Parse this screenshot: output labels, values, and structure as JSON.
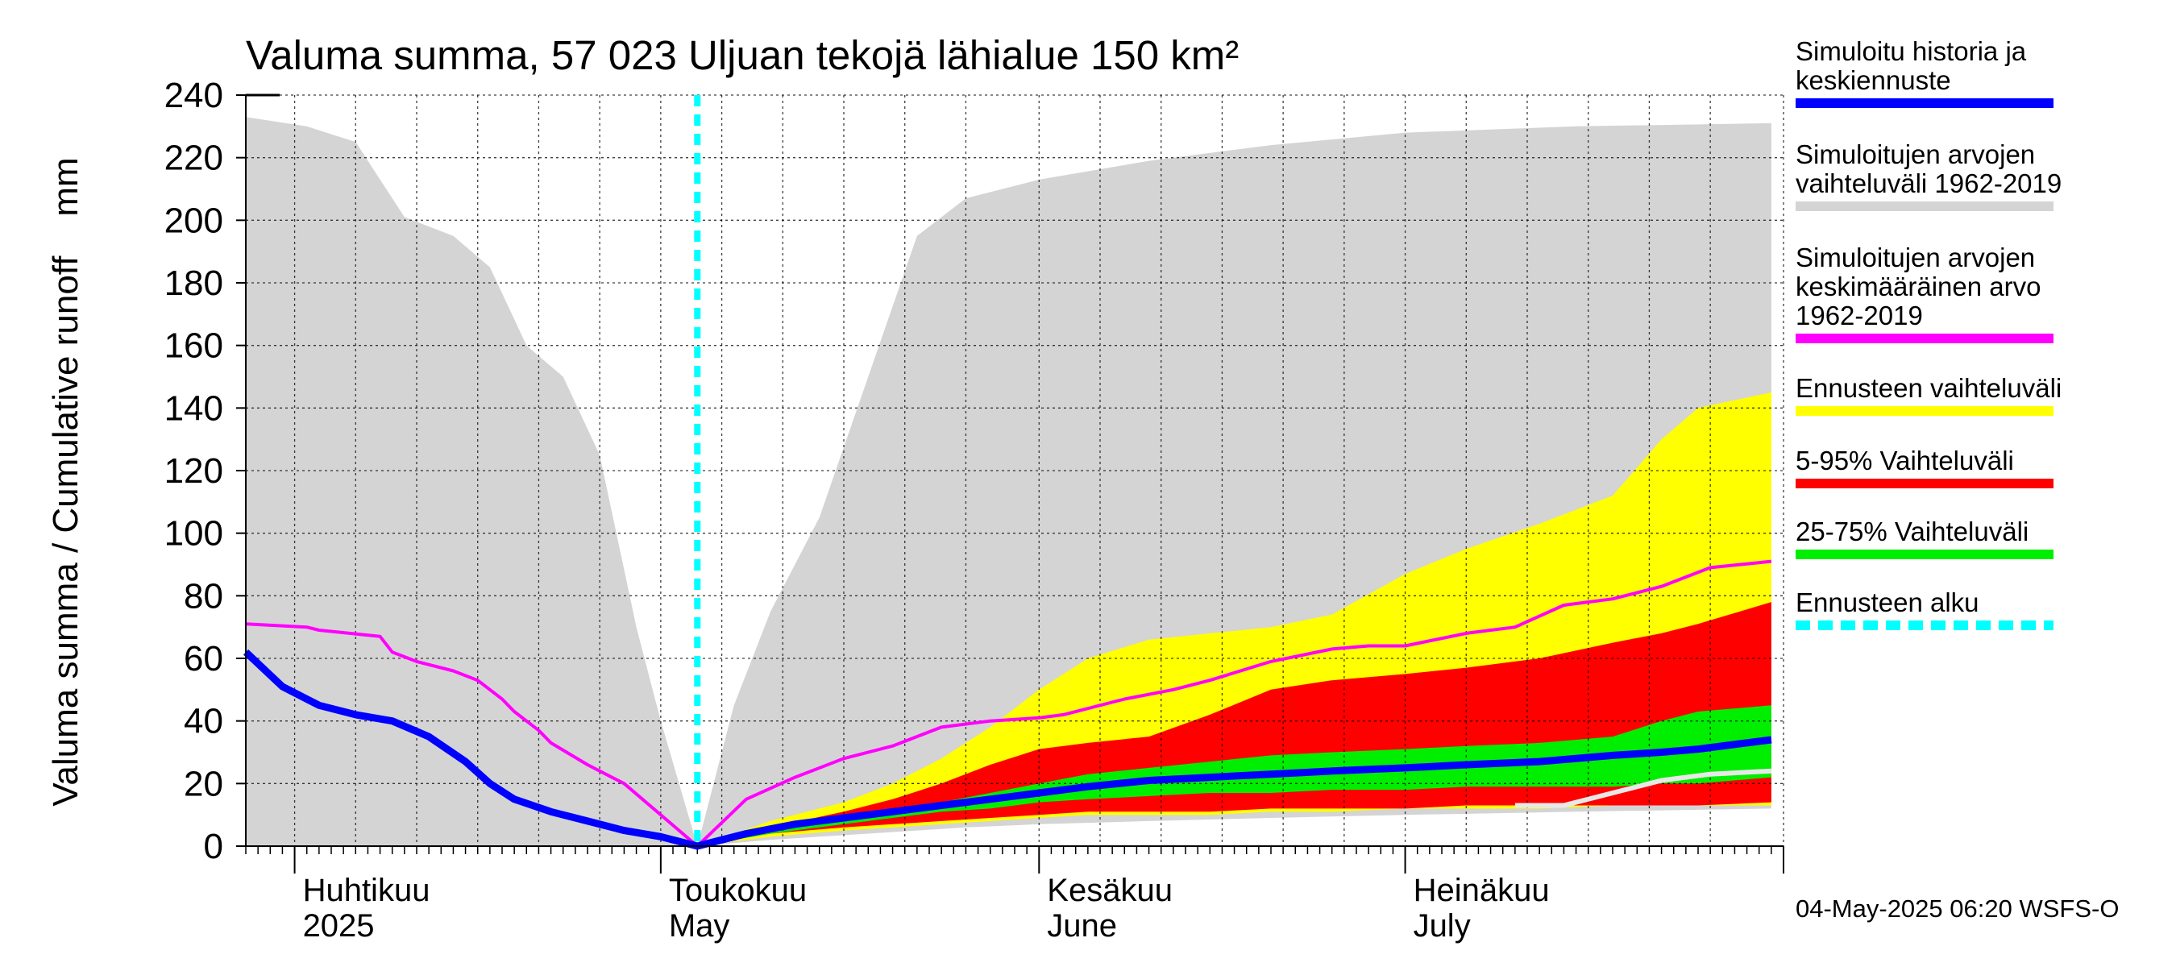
{
  "chart_data": {
    "type": "area",
    "title": "Valuma summa, 57 023 Uljuan tekojä lähialue 150 km²",
    "ylabel": "Valuma summa / Cumulative runoff    mm",
    "ylim": [
      0,
      240
    ],
    "yticks": [
      0,
      20,
      40,
      60,
      80,
      100,
      120,
      140,
      160,
      180,
      200,
      220,
      240
    ],
    "x_range": [
      "2025-03-28",
      "2025-07-31"
    ],
    "grid": true,
    "month_labels": [
      {
        "date": "2025-04-01",
        "fi": "Huhtikuu",
        "en": "2025"
      },
      {
        "date": "2025-05-01",
        "fi": "Toukokuu",
        "en": "May"
      },
      {
        "date": "2025-06-01",
        "fi": "Kesäkuu",
        "en": "June"
      },
      {
        "date": "2025-07-01",
        "fi": "Heinäkuu",
        "en": "July"
      }
    ],
    "forecast_start": "2025-05-04",
    "legend_position": "right",
    "bands": [
      {
        "name": "Simuloitujen arvojen vaihteluväli 1962-2019",
        "color": "#d4d4d4",
        "x": [
          "2025-03-28",
          "2025-04-02",
          "2025-04-06",
          "2025-04-10",
          "2025-04-14",
          "2025-04-17",
          "2025-04-20",
          "2025-04-23",
          "2025-04-26",
          "2025-04-29",
          "2025-05-01",
          "2025-05-04",
          "2025-05-07",
          "2025-05-10",
          "2025-05-14",
          "2025-05-18",
          "2025-05-22",
          "2025-05-26",
          "2025-06-01",
          "2025-06-10",
          "2025-06-20",
          "2025-07-01",
          "2025-07-15",
          "2025-07-31"
        ],
        "upper": [
          233,
          230,
          225,
          201,
          195,
          185,
          160,
          150,
          125,
          70,
          40,
          0,
          45,
          75,
          105,
          150,
          195,
          207,
          213,
          219,
          224,
          228,
          230,
          231
        ],
        "lower": [
          0,
          0,
          0,
          0,
          0,
          0,
          0,
          0,
          0,
          0,
          0,
          0,
          1,
          2,
          3,
          4,
          5,
          6,
          7,
          8,
          9,
          10,
          11,
          12
        ]
      },
      {
        "name": "Ennusteen vaihteluväli",
        "color": "#ffff00",
        "x": [
          "2025-05-04",
          "2025-05-10",
          "2025-05-16",
          "2025-05-20",
          "2025-05-24",
          "2025-05-28",
          "2025-06-01",
          "2025-06-05",
          "2025-06-10",
          "2025-06-15",
          "2025-06-20",
          "2025-06-25",
          "2025-07-01",
          "2025-07-06",
          "2025-07-12",
          "2025-07-18",
          "2025-07-22",
          "2025-07-25",
          "2025-07-31"
        ],
        "upper": [
          0,
          8,
          14,
          20,
          28,
          38,
          50,
          60,
          66,
          68,
          70,
          74,
          87,
          95,
          103,
          112,
          130,
          140,
          145
        ],
        "lower": [
          0,
          3,
          5,
          6,
          7,
          8,
          9,
          10,
          10,
          10,
          11,
          11,
          12,
          12,
          12,
          13,
          13,
          13,
          13
        ]
      },
      {
        "name": "5-95% Vaihteluväli",
        "color": "#ff0000",
        "x": [
          "2025-05-04",
          "2025-05-10",
          "2025-05-16",
          "2025-05-20",
          "2025-05-24",
          "2025-05-28",
          "2025-06-01",
          "2025-06-05",
          "2025-06-10",
          "2025-06-15",
          "2025-06-20",
          "2025-06-25",
          "2025-07-01",
          "2025-07-06",
          "2025-07-12",
          "2025-07-18",
          "2025-07-22",
          "2025-07-25",
          "2025-07-31"
        ],
        "upper": [
          0,
          6,
          11,
          15,
          20,
          26,
          31,
          33,
          35,
          42,
          50,
          53,
          55,
          57,
          60,
          65,
          68,
          71,
          78
        ],
        "lower": [
          0,
          4,
          6,
          7,
          8,
          9,
          10,
          11,
          11,
          11,
          12,
          12,
          12,
          13,
          13,
          13,
          13,
          13,
          14
        ]
      },
      {
        "name": "25-75% Vaihteluväli",
        "color": "#00ee00",
        "x": [
          "2025-05-04",
          "2025-05-10",
          "2025-05-16",
          "2025-05-20",
          "2025-05-24",
          "2025-05-28",
          "2025-06-01",
          "2025-06-05",
          "2025-06-10",
          "2025-06-15",
          "2025-06-20",
          "2025-06-25",
          "2025-07-01",
          "2025-07-06",
          "2025-07-12",
          "2025-07-18",
          "2025-07-22",
          "2025-07-25",
          "2025-07-31"
        ],
        "upper": [
          0,
          5,
          9,
          12,
          14,
          17,
          20,
          23,
          25,
          27,
          29,
          30,
          31,
          32,
          33,
          35,
          40,
          43,
          45
        ],
        "lower": [
          0,
          4,
          7,
          9,
          11,
          12,
          14,
          15,
          16,
          17,
          17,
          18,
          18,
          19,
          19,
          19,
          20,
          20,
          22
        ]
      }
    ],
    "series": [
      {
        "name": "Simuloitujen arvojen keskimääräinen arvo 1962-2019",
        "color": "#ff00ff",
        "x": [
          "2025-03-28",
          "2025-04-02",
          "2025-04-03",
          "2025-04-08",
          "2025-04-09",
          "2025-04-11",
          "2025-04-14",
          "2025-04-16",
          "2025-04-18",
          "2025-04-19",
          "2025-04-21",
          "2025-04-22",
          "2025-04-25",
          "2025-04-28",
          "2025-05-04",
          "2025-05-08",
          "2025-05-12",
          "2025-05-16",
          "2025-05-20",
          "2025-05-24",
          "2025-05-28",
          "2025-06-01",
          "2025-06-03",
          "2025-06-08",
          "2025-06-12",
          "2025-06-15",
          "2025-06-20",
          "2025-06-25",
          "2025-06-28",
          "2025-07-01",
          "2025-07-06",
          "2025-07-10",
          "2025-07-14",
          "2025-07-18",
          "2025-07-22",
          "2025-07-26",
          "2025-07-31"
        ],
        "values": [
          71,
          70,
          69,
          67,
          62,
          59,
          56,
          53,
          47,
          43,
          37,
          33,
          26,
          20,
          0,
          15,
          22,
          28,
          32,
          38,
          40,
          41,
          42,
          47,
          50,
          53,
          59,
          63,
          64,
          64,
          68,
          70,
          77,
          79,
          83,
          89,
          91
        ]
      },
      {
        "name": "Simuloitu historia ja keskiennuste",
        "color": "#0000ff",
        "x": [
          "2025-03-28",
          "2025-03-31",
          "2025-04-03",
          "2025-04-06",
          "2025-04-09",
          "2025-04-12",
          "2025-04-15",
          "2025-04-17",
          "2025-04-19",
          "2025-04-22",
          "2025-04-25",
          "2025-04-28",
          "2025-05-01",
          "2025-05-04",
          "2025-05-08",
          "2025-05-12",
          "2025-05-16",
          "2025-05-20",
          "2025-05-24",
          "2025-05-28",
          "2025-06-01",
          "2025-06-05",
          "2025-06-10",
          "2025-06-15",
          "2025-06-20",
          "2025-06-25",
          "2025-07-01",
          "2025-07-06",
          "2025-07-12",
          "2025-07-18",
          "2025-07-22",
          "2025-07-25",
          "2025-07-31"
        ],
        "values": [
          62,
          51,
          45,
          42,
          40,
          35,
          27,
          20,
          15,
          11,
          8,
          5,
          3,
          0,
          4,
          7,
          9,
          11,
          13,
          15,
          17,
          19,
          21,
          22,
          23,
          24,
          25,
          26,
          27,
          29,
          30,
          31,
          34
        ]
      },
      {
        "name": "",
        "color": "#e8e8e8",
        "x": [
          "2025-07-10",
          "2025-07-14",
          "2025-07-18",
          "2025-07-22",
          "2025-07-26",
          "2025-07-31"
        ],
        "values": [
          13,
          13,
          17,
          21,
          23,
          24
        ]
      }
    ]
  },
  "legend": [
    {
      "label": "Simuloitu historia ja\nkeskiennuste",
      "color": "#0000ff"
    },
    {
      "label": "Simuloitujen arvojen\nvaihteluväli 1962-2019",
      "color": "#d4d4d4"
    },
    {
      "label": "Simuloitujen arvojen\nkeskimääräinen arvo\n   1962-2019",
      "color": "#ff00ff"
    },
    {
      "label": "Ennusteen vaihteluväli",
      "color": "#ffff00"
    },
    {
      "label": "5-95% Vaihteluväli",
      "color": "#ff0000"
    },
    {
      "label": "25-75% Vaihteluväli",
      "color": "#00ee00"
    },
    {
      "label": "Ennusteen alku",
      "color": "#00ffff",
      "dashed": true
    }
  ],
  "footer": {
    "stamp": "04-May-2025 06:20 WSFS-O"
  }
}
